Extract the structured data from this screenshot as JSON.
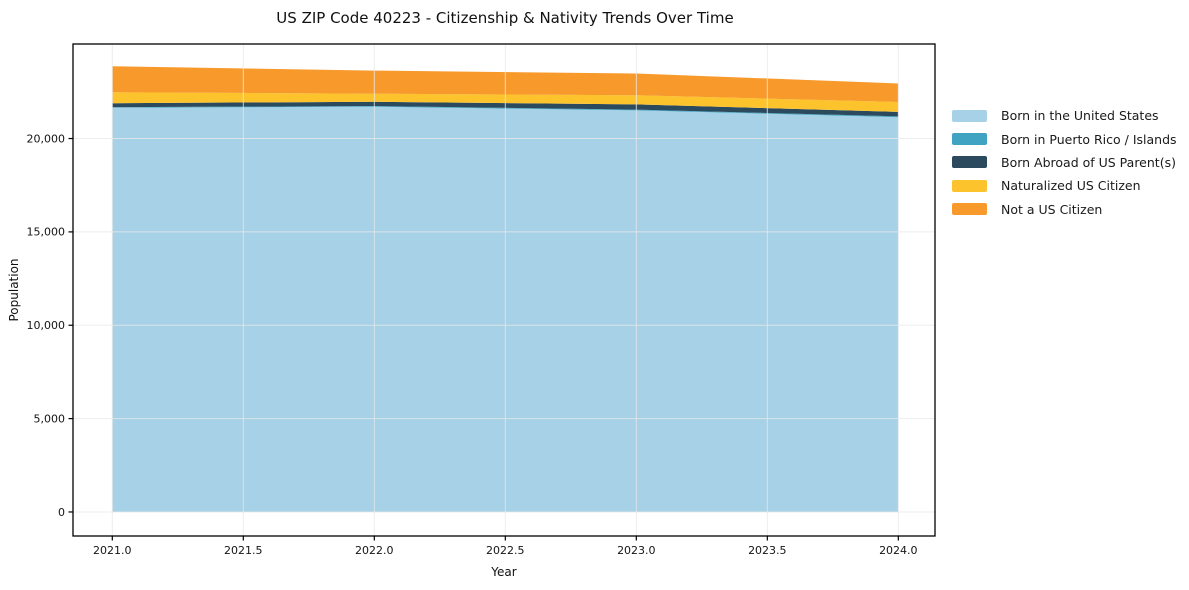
{
  "chart_data": {
    "type": "area",
    "stacked": true,
    "title": "US ZIP Code 40223 - Citizenship & Nativity Trends Over Time",
    "xlabel": "Year",
    "ylabel": "Population",
    "x": [
      2021,
      2022,
      2023,
      2024
    ],
    "series": [
      {
        "name": "Born in the United States",
        "color": "#a6d1e6",
        "values": [
          21650,
          21700,
          21510,
          21140
        ]
      },
      {
        "name": "Born in Puerto Rico / Islands",
        "color": "#41a3c2",
        "values": [
          30,
          40,
          40,
          50
        ]
      },
      {
        "name": "Born Abroad of US Parent(s)",
        "color": "#2b4a5e",
        "values": [
          210,
          230,
          280,
          240
        ]
      },
      {
        "name": "Naturalized US Citizen",
        "color": "#fcc32d",
        "values": [
          590,
          430,
          490,
          530
        ]
      },
      {
        "name": "Not a US Citizen",
        "color": "#f8992b",
        "values": [
          1390,
          1240,
          1160,
          990
        ]
      }
    ],
    "xticks": [
      2021.0,
      2021.5,
      2022.0,
      2022.5,
      2023.0,
      2023.5,
      2024.0
    ],
    "xtick_labels": [
      "2021.0",
      "2021.5",
      "2022.0",
      "2022.5",
      "2023.0",
      "2023.5",
      "2024.0"
    ],
    "yticks": [
      0,
      5000,
      10000,
      15000,
      20000
    ],
    "ytick_labels": [
      "0",
      "5,000",
      "10,000",
      "15,000",
      "20,000"
    ],
    "xlim": [
      2020.85,
      2024.14
    ],
    "ylim": [
      -1287,
      25063
    ],
    "grid": true,
    "grid_color": "#e9e9e9",
    "frame_color": "#000000",
    "legend_position": "right"
  }
}
